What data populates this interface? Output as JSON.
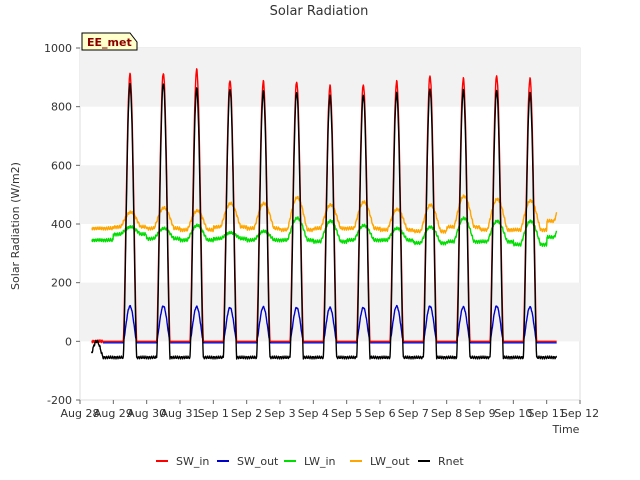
{
  "chart_data": {
    "type": "line",
    "title": "Solar Radiation",
    "xlabel": "Time",
    "ylabel": "Solar Radiation (W/m2)",
    "badge": "EE_met",
    "xlim": [
      0,
      15
    ],
    "ylim": [
      -200,
      1000
    ],
    "y_ticks": [
      -200,
      0,
      200,
      400,
      600,
      800,
      1000
    ],
    "x_tick_labels": [
      "Aug 28",
      "Aug 29",
      "Aug 30",
      "Aug 31",
      "Sep 1",
      "Sep 2",
      "Sep 3",
      "Sep 4",
      "Sep 5",
      "Sep 6",
      "Sep 7",
      "Sep 8",
      "Sep 9",
      "Sep 10",
      "Sep 11",
      "Sep 12"
    ],
    "grid": "horizontal shaded bands",
    "legend_position": "bottom",
    "data_start_day": 0.35,
    "data_end_day": 14.3,
    "days": [
      "Aug 28",
      "Aug 29",
      "Aug 30",
      "Aug 31",
      "Sep 1",
      "Sep 2",
      "Sep 3",
      "Sep 4",
      "Sep 5",
      "Sep 6",
      "Sep 7",
      "Sep 8",
      "Sep 9",
      "Sep 10",
      "Sep 11"
    ],
    "series": [
      {
        "name": "SW_in",
        "color": "#ff0000",
        "daily_peak": [
          0,
          910,
          915,
          925,
          890,
          885,
          885,
          870,
          875,
          885,
          905,
          895,
          905,
          895,
          885
        ],
        "night_level": 0
      },
      {
        "name": "SW_out",
        "color": "#0000cc",
        "daily_peak": [
          0,
          120,
          120,
          118,
          115,
          117,
          115,
          115,
          115,
          120,
          120,
          117,
          120,
          117,
          115
        ],
        "night_level": -5
      },
      {
        "name": "LW_in",
        "color": "#00dd00",
        "daily_day": [
          0,
          390,
          385,
          395,
          370,
          375,
          420,
          410,
          395,
          385,
          390,
          420,
          410,
          410,
          410
        ],
        "daily_night": [
          345,
          365,
          350,
          345,
          350,
          345,
          345,
          340,
          345,
          345,
          335,
          340,
          340,
          330,
          355
        ]
      },
      {
        "name": "LW_out",
        "color": "#ffa500",
        "daily_day": [
          0,
          440,
          455,
          445,
          470,
          470,
          490,
          465,
          475,
          450,
          465,
          495,
          485,
          480,
          490
        ],
        "daily_night": [
          385,
          390,
          385,
          380,
          390,
          385,
          380,
          385,
          385,
          380,
          375,
          390,
          380,
          380,
          410
        ]
      },
      {
        "name": "Rnet",
        "color": "#000000",
        "daily_peak": [
          0,
          875,
          880,
          860,
          860,
          850,
          850,
          835,
          840,
          845,
          860,
          855,
          855,
          845,
          840
        ],
        "night_level": -55
      }
    ]
  }
}
